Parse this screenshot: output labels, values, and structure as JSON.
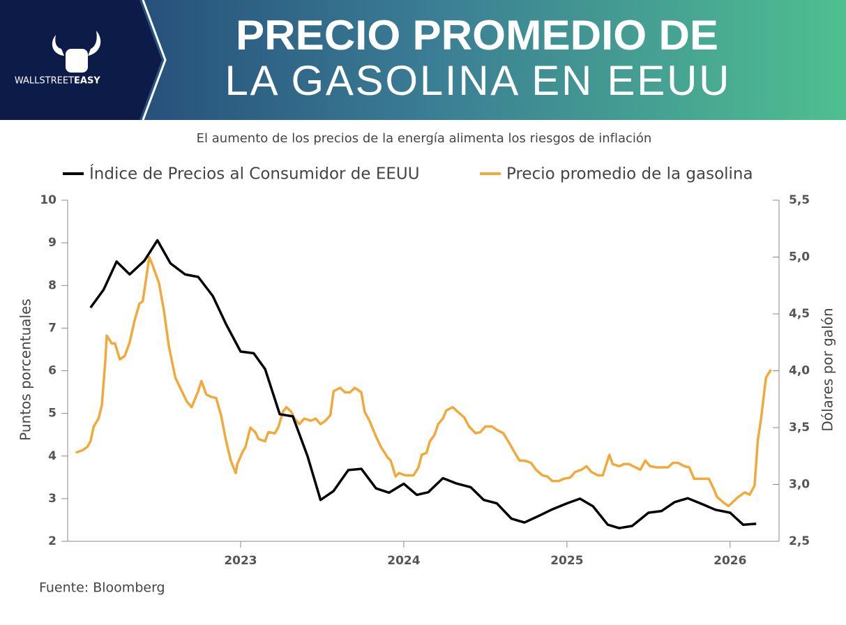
{
  "header": {
    "title_line1": "PRECIO PROMEDIO DE",
    "title_line2": "LA GASOLINA EN EEUU",
    "logo_text_1": "WALLSTREET",
    "logo_text_2": "EASY"
  },
  "chart_data": {
    "type": "line",
    "subtitle": "El aumento de los precios de la energía alimenta los riesgos de inflación",
    "ylabel": "Puntos porcentuales",
    "y2label": "Dólares por galón",
    "source": "Fuente: Bloomberg",
    "legend": "top",
    "xlim": [
      2021.94,
      2026.3
    ],
    "xticks": [
      2023,
      2024,
      2025,
      2026
    ],
    "ylim": [
      2,
      10
    ],
    "yticks": [
      2,
      3,
      4,
      5,
      6,
      7,
      8,
      9,
      10
    ],
    "y2lim": [
      2.5,
      5.5
    ],
    "y2ticks": [
      {
        "value": 2.5,
        "label": "2,5"
      },
      {
        "value": 3.0,
        "label": "3,0"
      },
      {
        "value": 3.5,
        "label": "3,5"
      },
      {
        "value": 4.0,
        "label": "4,0"
      },
      {
        "value": 4.5,
        "label": "4,5"
      },
      {
        "value": 5.0,
        "label": "5,0"
      },
      {
        "value": 5.5,
        "label": "5,5"
      }
    ],
    "series": [
      {
        "name": "Índice de Precios al Consumidor de EEUU",
        "color": "#000000",
        "x": [
          2022.08,
          2022.16,
          2022.24,
          2022.32,
          2022.41,
          2022.49,
          2022.57,
          2022.66,
          2022.74,
          2022.83,
          2022.91,
          2023.0,
          2023.08,
          2023.15,
          2023.24,
          2023.32,
          2023.41,
          2023.49,
          2023.57,
          2023.66,
          2023.74,
          2023.83,
          2023.91,
          2024.0,
          2024.08,
          2024.15,
          2024.24,
          2024.32,
          2024.41,
          2024.49,
          2024.57,
          2024.66,
          2024.74,
          2024.83,
          2024.91,
          2025.0,
          2025.08,
          2025.16,
          2025.25,
          2025.32,
          2025.4,
          2025.5,
          2025.58,
          2025.66,
          2025.74,
          2025.83,
          2025.91,
          2026.0,
          2026.08,
          2026.16
        ],
        "values": [
          7.48,
          7.9,
          8.56,
          8.26,
          8.58,
          9.06,
          8.52,
          8.26,
          8.2,
          7.75,
          7.1,
          6.45,
          6.41,
          6.04,
          4.98,
          4.93,
          4.0,
          2.97,
          3.18,
          3.67,
          3.7,
          3.24,
          3.14,
          3.35,
          3.09,
          3.15,
          3.48,
          3.36,
          3.27,
          2.97,
          2.89,
          2.53,
          2.44,
          2.6,
          2.75,
          2.89,
          3.0,
          2.82,
          2.39,
          2.31,
          2.36,
          2.67,
          2.71,
          2.92,
          3.01,
          2.87,
          2.74,
          2.67,
          2.39,
          2.41
        ]
      },
      {
        "name": "Precio promedio de la gasolina",
        "color": "#f2a93b",
        "axis": "y2",
        "x": [
          2021.99,
          2022.03,
          2022.06,
          2022.08,
          2022.1,
          2022.13,
          2022.15,
          2022.17,
          2022.18,
          2022.21,
          2022.23,
          2022.26,
          2022.29,
          2022.32,
          2022.35,
          2022.38,
          2022.4,
          2022.42,
          2022.44,
          2022.46,
          2022.5,
          2022.53,
          2022.56,
          2022.6,
          2022.63,
          2022.67,
          2022.7,
          2022.74,
          2022.76,
          2022.79,
          2022.82,
          2022.85,
          2022.88,
          2022.91,
          2022.94,
          2022.97,
          2022.98,
          2023.01,
          2023.03,
          2023.06,
          2023.09,
          2023.11,
          2023.15,
          2023.17,
          2023.21,
          2023.23,
          2023.26,
          2023.28,
          2023.31,
          2023.33,
          2023.36,
          2023.39,
          2023.43,
          2023.46,
          2023.49,
          2023.52,
          2023.55,
          2023.57,
          2023.61,
          2023.64,
          2023.67,
          2023.7,
          2023.74,
          2023.76,
          2023.79,
          2023.83,
          2023.86,
          2023.9,
          2023.92,
          2023.95,
          2023.97,
          2024.01,
          2024.03,
          2024.06,
          2024.09,
          2024.11,
          2024.14,
          2024.16,
          2024.19,
          2024.21,
          2024.24,
          2024.26,
          2024.3,
          2024.33,
          2024.37,
          2024.4,
          2024.44,
          2024.47,
          2024.5,
          2024.54,
          2024.57,
          2024.61,
          2024.64,
          2024.68,
          2024.71,
          2024.74,
          2024.78,
          2024.81,
          2024.85,
          2024.88,
          2024.91,
          2024.95,
          2024.98,
          2025.02,
          2025.05,
          2025.09,
          2025.12,
          2025.15,
          2025.19,
          2025.22,
          2025.26,
          2025.28,
          2025.32,
          2025.35,
          2025.38,
          2025.42,
          2025.45,
          2025.48,
          2025.51,
          2025.55,
          2025.58,
          2025.62,
          2025.65,
          2025.68,
          2025.72,
          2025.75,
          2025.78,
          2025.8,
          2025.84,
          2025.87,
          2025.9,
          2025.92,
          2025.96,
          2025.99,
          2026.02,
          2026.05,
          2026.09,
          2026.12,
          2026.15,
          2026.17,
          2026.19,
          2026.21,
          2026.22,
          2026.25
        ],
        "values": [
          3.28,
          3.3,
          3.33,
          3.38,
          3.51,
          3.58,
          3.7,
          4.07,
          4.31,
          4.24,
          4.24,
          4.1,
          4.13,
          4.25,
          4.44,
          4.59,
          4.61,
          4.8,
          5.0,
          4.93,
          4.77,
          4.53,
          4.22,
          3.94,
          3.85,
          3.73,
          3.68,
          3.82,
          3.91,
          3.79,
          3.77,
          3.76,
          3.61,
          3.39,
          3.21,
          3.1,
          3.18,
          3.28,
          3.33,
          3.5,
          3.46,
          3.4,
          3.38,
          3.46,
          3.45,
          3.5,
          3.64,
          3.68,
          3.64,
          3.58,
          3.53,
          3.58,
          3.56,
          3.58,
          3.53,
          3.56,
          3.61,
          3.82,
          3.85,
          3.81,
          3.81,
          3.85,
          3.81,
          3.64,
          3.56,
          3.42,
          3.33,
          3.24,
          3.21,
          3.07,
          3.1,
          3.08,
          3.08,
          3.08,
          3.15,
          3.26,
          3.28,
          3.38,
          3.44,
          3.53,
          3.58,
          3.65,
          3.68,
          3.64,
          3.59,
          3.51,
          3.45,
          3.46,
          3.51,
          3.51,
          3.48,
          3.45,
          3.38,
          3.28,
          3.21,
          3.21,
          3.19,
          3.13,
          3.08,
          3.07,
          3.03,
          3.03,
          3.05,
          3.06,
          3.11,
          3.13,
          3.16,
          3.11,
          3.08,
          3.08,
          3.26,
          3.18,
          3.16,
          3.18,
          3.18,
          3.15,
          3.13,
          3.21,
          3.16,
          3.15,
          3.15,
          3.15,
          3.19,
          3.19,
          3.16,
          3.15,
          3.05,
          3.05,
          3.05,
          3.05,
          2.96,
          2.89,
          2.84,
          2.81,
          2.85,
          2.89,
          2.93,
          2.91,
          2.99,
          3.39,
          3.58,
          3.82,
          3.94,
          4.01
        ]
      }
    ]
  }
}
